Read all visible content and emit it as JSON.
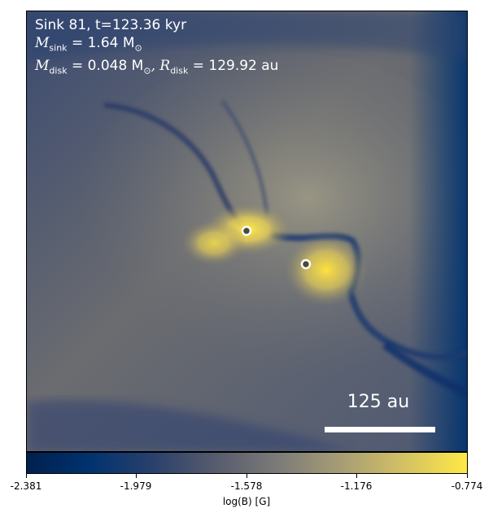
{
  "annotation": {
    "line1": "Sink 81, t=123.36 kyr",
    "m_sink_symbol": "M",
    "m_sink_sub": "sink",
    "m_sink_value": " = 1.64 M",
    "m_sink_unit_sub": "⊙",
    "m_disk_symbol": "M",
    "m_disk_sub": "disk",
    "m_disk_value": " = 0.048 M",
    "m_disk_unit_sub": "⊙",
    "r_disk_symbol": ", R",
    "r_disk_sub": "disk",
    "r_disk_value": " = 129.92 au"
  },
  "scale_bar": {
    "label": "125 au"
  },
  "colorbar": {
    "label": "log(B) [G]",
    "ticks": [
      "-2.381",
      "-1.979",
      "-1.578",
      "-1.176",
      "-0.774"
    ],
    "colors": [
      "#00204d",
      "#00336f",
      "#2a406c",
      "#575c6d",
      "#7c7b78",
      "#a69d75",
      "#d3c164",
      "#ffe945"
    ]
  },
  "sinks": {
    "count": 2,
    "marker_fill": "#4a4a3a",
    "marker_edge": "#ffffff"
  }
}
